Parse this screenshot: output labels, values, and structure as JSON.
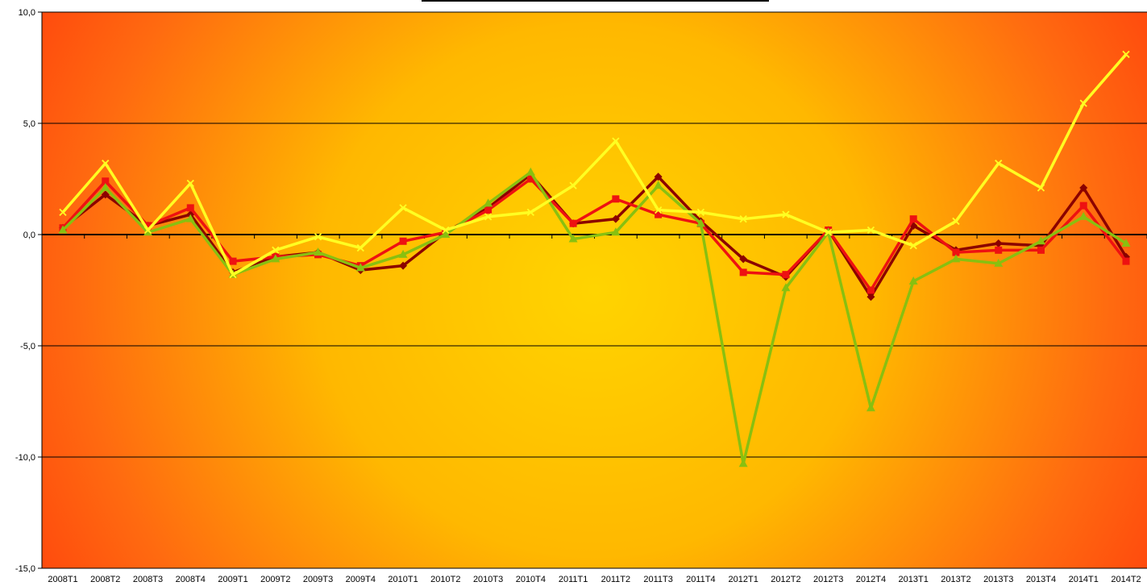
{
  "chart_data": {
    "type": "line",
    "title": "",
    "xlabel": "",
    "ylabel": "",
    "categories": [
      "2008T1",
      "2008T2",
      "2008T3",
      "2008T4",
      "2009T1",
      "2009T2",
      "2009T3",
      "2009T4",
      "2010T1",
      "2010T2",
      "2010T3",
      "2010T4",
      "2011T1",
      "2011T2",
      "2011T3",
      "2011T4",
      "2012T1",
      "2012T2",
      "2012T3",
      "2012T4",
      "2013T1",
      "2013T2",
      "2013T3",
      "2013T4",
      "2014T1",
      "2014T2"
    ],
    "ylim": [
      -15,
      10
    ],
    "yticks": [
      -15,
      -10,
      -5,
      0,
      5,
      10
    ],
    "ytick_labels": [
      "-15,0",
      "-10,0",
      "-5,0",
      "0,0",
      "5,0",
      "10,0"
    ],
    "grid": true,
    "series": [
      {
        "color": "#8B0000",
        "marker": "diamond",
        "values": [
          0.3,
          1.8,
          0.4,
          0.9,
          -1.7,
          -1.0,
          -0.8,
          -1.6,
          -1.4,
          0.1,
          1.2,
          2.7,
          0.5,
          0.7,
          2.6,
          0.6,
          -1.1,
          -1.9,
          0.2,
          -2.8,
          0.4,
          -0.7,
          -0.4,
          -0.5,
          2.1,
          -1.0
        ]
      },
      {
        "color": "#EE1111",
        "marker": "square",
        "values": [
          0.3,
          2.4,
          0.4,
          1.2,
          -1.2,
          -1.0,
          -0.9,
          -1.4,
          -0.3,
          0.1,
          1.1,
          2.5,
          0.5,
          1.6,
          0.9,
          0.5,
          -1.7,
          -1.8,
          0.2,
          -2.5,
          0.7,
          -0.8,
          -0.7,
          -0.7,
          1.3,
          -1.2
        ]
      },
      {
        "color": "#88C010",
        "marker": "triangle",
        "values": [
          0.2,
          2.1,
          0.1,
          0.7,
          -1.8,
          -1.1,
          -0.8,
          -1.5,
          -0.9,
          0.0,
          1.4,
          2.8,
          -0.2,
          0.1,
          2.2,
          0.5,
          -10.3,
          -2.4,
          0.1,
          -7.8,
          -2.1,
          -1.1,
          -1.3,
          -0.3,
          0.8,
          -0.4
        ]
      },
      {
        "color": "#FFFF22",
        "marker": "x",
        "values": [
          1.0,
          3.2,
          0.2,
          2.3,
          -1.8,
          -0.7,
          -0.1,
          -0.6,
          1.2,
          0.2,
          0.8,
          1.0,
          2.2,
          4.2,
          1.1,
          1.0,
          0.7,
          0.9,
          0.1,
          0.2,
          -0.5,
          0.6,
          3.2,
          2.1,
          5.9,
          8.1
        ]
      }
    ]
  }
}
